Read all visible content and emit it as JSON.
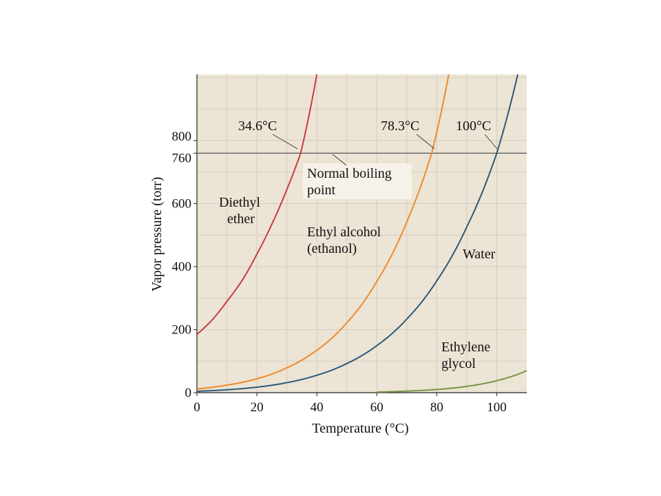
{
  "chart_data": {
    "type": "line",
    "xlabel": "Temperature (°C)",
    "ylabel": "Vapor pressure (torr)",
    "xlim": [
      0,
      110
    ],
    "ylim": [
      0,
      1010
    ],
    "xticks": [
      0,
      20,
      40,
      60,
      80,
      100
    ],
    "yticks": [
      0,
      200,
      400,
      600,
      760,
      800
    ],
    "grid": true,
    "colors": {
      "background": "#ece4d5",
      "grid": "#d6cdbd",
      "reference_line": "#555555",
      "diethyl_ether": "#c83c3c",
      "ethyl_alcohol": "#ee8a2c",
      "water": "#2a5a78",
      "ethylene_glycol": "#7a9448"
    },
    "reference_line": {
      "y": 760,
      "label": "Normal boiling point"
    },
    "boiling_labels": [
      {
        "text": "34.6°C",
        "x": 34.6
      },
      {
        "text": "78.3°C",
        "x": 78.3
      },
      {
        "text": "100°C",
        "x": 100
      }
    ],
    "series": [
      {
        "label_lines": [
          "Diethyl",
          "ether"
        ],
        "x": [
          0,
          5,
          10,
          15,
          20,
          25,
          30,
          34.6,
          40
        ],
        "y": [
          185,
          230,
          290,
          355,
          440,
          535,
          645,
          760,
          1010
        ]
      },
      {
        "label_lines": [
          "Ethyl alcohol",
          "(ethanol)"
        ],
        "x": [
          0,
          10,
          20,
          30,
          40,
          50,
          60,
          70,
          78.3,
          84
        ],
        "y": [
          12,
          24,
          44,
          79,
          135,
          222,
          353,
          542,
          760,
          1010
        ]
      },
      {
        "label_lines": [
          "Water"
        ],
        "x": [
          0,
          10,
          20,
          30,
          40,
          50,
          60,
          70,
          80,
          90,
          100,
          107
        ],
        "y": [
          4.6,
          9.2,
          17.5,
          31.8,
          55.3,
          92.5,
          149.4,
          233.7,
          355.1,
          525.8,
          760,
          1010
        ]
      },
      {
        "label_lines": [
          "Ethylene",
          "glycol"
        ],
        "x": [
          60,
          70,
          80,
          90,
          100,
          110
        ],
        "y": [
          2,
          5,
          10,
          20,
          38,
          70
        ]
      }
    ]
  }
}
